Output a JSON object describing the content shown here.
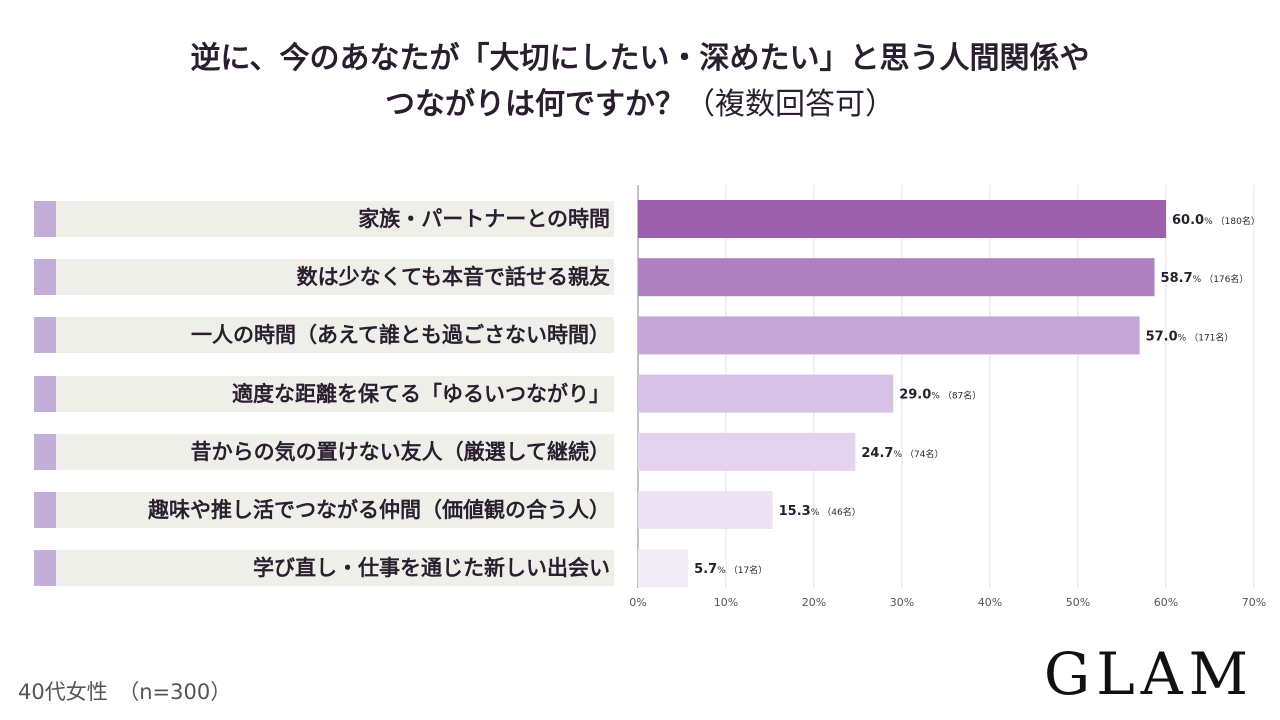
{
  "title": {
    "line1": "逆に、今のあなたが「大切にしたい・深めたい」と思う人間関係や",
    "line2_main": "つながりは何ですか？",
    "line2_sub": "（複数回答可）"
  },
  "footer": {
    "sample": "40代女性　（n=300）",
    "logo": "GLAM"
  },
  "colors": {
    "bars": [
      "#9b5fac",
      "#ae80c0",
      "#c6a6d8",
      "#d7c1e6",
      "#e3d3ee",
      "#ece2f3",
      "#f1ecf5"
    ],
    "marker": "#c3aed9",
    "band": "#efefea"
  },
  "chart_data": {
    "type": "bar",
    "orientation": "horizontal",
    "categories": [
      "家族・パートナーとの時間",
      "数は少なくても本音で話せる親友",
      "一人の時間（あえて誰とも過ごさない時間）",
      "適度な距離を保てる「ゆるいつながり」",
      "昔からの気の置けない友人（厳選して継続）",
      "趣味や推し活でつながる仲間（価値観の合う人）",
      "学び直し・仕事を通じた新しい出会い"
    ],
    "values": [
      60.0,
      58.7,
      57.0,
      29.0,
      24.7,
      15.3,
      5.7
    ],
    "value_labels": [
      "60.0",
      "58.7",
      "57.0",
      "29.0",
      "24.7",
      "15.3",
      "5.7"
    ],
    "value_unit": "%",
    "counts": [
      "（180名）",
      "（176名）",
      "（171名）",
      "（87名）",
      "（74名）",
      "（46名）",
      "（17名）"
    ],
    "xlim": [
      0,
      70
    ],
    "ticks": [
      0,
      10,
      20,
      30,
      40,
      50,
      60,
      70
    ],
    "tick_labels": [
      "0%",
      "10%",
      "20%",
      "30%",
      "40%",
      "50%",
      "60%",
      "70%"
    ],
    "grid": true
  }
}
